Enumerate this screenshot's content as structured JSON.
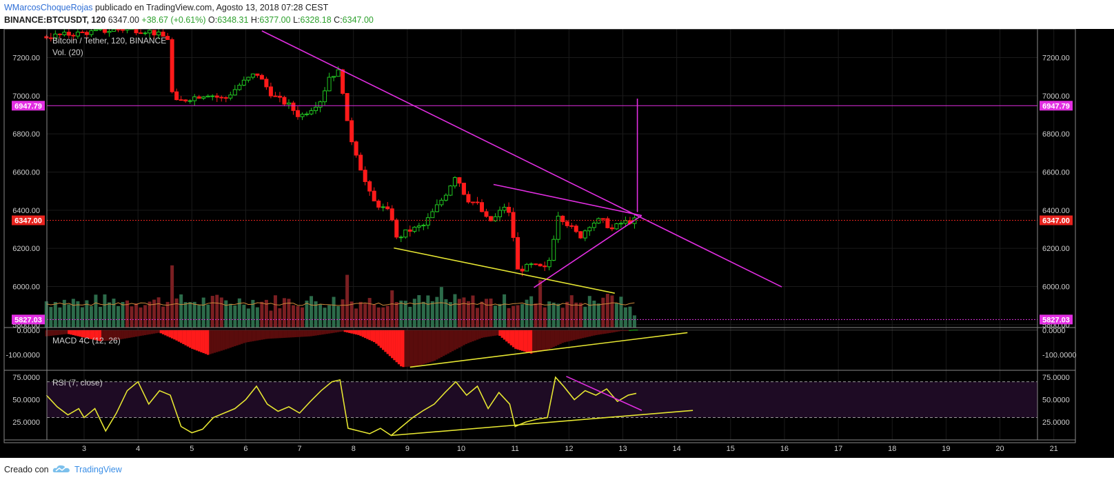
{
  "header": {
    "author": "WMarcosChoqueRojas",
    "published": "publicado en TradingView.com, Agosto 13, 2018 07:28 CEST",
    "symbol": "BINANCE:BTCUSDT, 120",
    "last": "6347.00",
    "change": "+38.67 (+0.61%)",
    "o_label": "O:",
    "o": "6348.31",
    "h_label": "H:",
    "h": "6377.00",
    "l_label": "L:",
    "l": "6328.18",
    "c_label": "C:",
    "c": "6347.00"
  },
  "footer": {
    "created": "Creado con",
    "brand": "TradingView"
  },
  "colors": {
    "bg": "#000000",
    "grid": "#1b1b1b",
    "up": "#22c922",
    "down": "#ff1a1a",
    "magenta": "#e22ee2",
    "yellow": "#e6e632",
    "price_tag": "#e8231e"
  },
  "chart_data": [
    {
      "type": "candlestick",
      "title": "Bitcoin / Tether, 120, BINANCE",
      "subtitle": "Vol. (20)",
      "x_ticks": [
        "3",
        "4",
        "5",
        "6",
        "7",
        "8",
        "9",
        "10",
        "11",
        "12",
        "13",
        "14",
        "15",
        "16",
        "17",
        "18",
        "19",
        "20",
        "21"
      ],
      "y_ticks": [
        "7200.00",
        "7000.00",
        "6800.00",
        "6600.00",
        "6400.00",
        "6200.00",
        "6000.00",
        "5800.00"
      ],
      "ylim": [
        5785,
        7350
      ],
      "price_tags": [
        {
          "value": 6947.79,
          "label": "6947.79",
          "color": "#e22ee2"
        },
        {
          "value": 6347.0,
          "label": "6347.00",
          "color": "#e8231e"
        },
        {
          "value": 5827.03,
          "label": "5827.03",
          "color": "#e22ee2"
        }
      ],
      "trendlines": [
        {
          "color": "#e22ee2",
          "points": [
            [
              6.3,
              7340
            ],
            [
              15.95,
              5998
            ]
          ]
        },
        {
          "color": "#e22ee2",
          "points": [
            [
              10.6,
              6535
            ],
            [
              13.35,
              6372
            ]
          ]
        },
        {
          "color": "#e22ee2",
          "points": [
            [
              11.35,
              5995
            ],
            [
              13.35,
              6372
            ]
          ]
        },
        {
          "color": "#e22ee2",
          "points": [
            [
              13.27,
              6390
            ],
            [
              13.27,
              6985
            ]
          ]
        },
        {
          "color": "#e6e632",
          "points": [
            [
              8.75,
              6202
            ],
            [
              12.85,
              5965
            ]
          ]
        }
      ],
      "candles_anchor": [
        [
          2.3,
          7310
        ],
        [
          3.0,
          7330
        ],
        [
          3.4,
          7340
        ],
        [
          3.7,
          7350
        ],
        [
          4.2,
          7340
        ],
        [
          4.55,
          7300
        ],
        [
          4.65,
          6960
        ],
        [
          5.0,
          6990
        ],
        [
          5.3,
          7010
        ],
        [
          5.6,
          6980
        ],
        [
          5.9,
          7060
        ],
        [
          6.2,
          7120
        ],
        [
          6.5,
          7000
        ],
        [
          6.8,
          6950
        ],
        [
          7.0,
          6890
        ],
        [
          7.2,
          6930
        ],
        [
          7.4,
          6980
        ],
        [
          7.55,
          7100
        ],
        [
          7.75,
          7130
        ],
        [
          7.9,
          6820
        ],
        [
          8.05,
          6700
        ],
        [
          8.2,
          6560
        ],
        [
          8.35,
          6450
        ],
        [
          8.5,
          6420
        ],
        [
          8.7,
          6380
        ],
        [
          8.8,
          6250
        ],
        [
          9.0,
          6290
        ],
        [
          9.3,
          6320
        ],
        [
          9.5,
          6400
        ],
        [
          9.7,
          6480
        ],
        [
          9.9,
          6590
        ],
        [
          10.1,
          6460
        ],
        [
          10.3,
          6430
        ],
        [
          10.5,
          6340
        ],
        [
          10.6,
          6350
        ],
        [
          10.8,
          6420
        ],
        [
          10.95,
          6350
        ],
        [
          11.0,
          6080
        ],
        [
          11.3,
          6110
        ],
        [
          11.6,
          6090
        ],
        [
          11.8,
          6380
        ],
        [
          12.0,
          6320
        ],
        [
          12.2,
          6260
        ],
        [
          12.4,
          6330
        ],
        [
          12.6,
          6350
        ],
        [
          12.8,
          6300
        ],
        [
          12.95,
          6330
        ],
        [
          13.2,
          6347
        ]
      ],
      "volume_hint": [
        [
          3,
          30
        ],
        [
          4.6,
          92
        ],
        [
          6.5,
          25
        ],
        [
          7.9,
          78
        ],
        [
          8.7,
          55
        ],
        [
          9.6,
          60
        ],
        [
          11.5,
          70
        ],
        [
          12.75,
          50
        ],
        [
          13.2,
          18
        ]
      ]
    },
    {
      "type": "histogram",
      "title": "MACD 4C (12, 26)",
      "y_ticks": [
        "0.0000",
        "-100.0000"
      ],
      "ylim": [
        -160,
        8
      ],
      "anchor": [
        [
          2.3,
          -25
        ],
        [
          2.7,
          -15
        ],
        [
          3.0,
          -30
        ],
        [
          3.3,
          -45
        ],
        [
          3.6,
          -40
        ],
        [
          4.0,
          -25
        ],
        [
          4.4,
          -10
        ],
        [
          4.7,
          -40
        ],
        [
          5.0,
          -75
        ],
        [
          5.3,
          -100
        ],
        [
          5.6,
          -80
        ],
        [
          6.0,
          -50
        ],
        [
          6.4,
          -35
        ],
        [
          6.8,
          -30
        ],
        [
          7.2,
          -25
        ],
        [
          7.6,
          -12
        ],
        [
          7.8,
          -5
        ],
        [
          8.1,
          -20
        ],
        [
          8.4,
          -50
        ],
        [
          8.7,
          -110
        ],
        [
          8.9,
          -150
        ],
        [
          9.2,
          -145
        ],
        [
          9.5,
          -125
        ],
        [
          9.8,
          -90
        ],
        [
          10.1,
          -55
        ],
        [
          10.4,
          -30
        ],
        [
          10.7,
          -20
        ],
        [
          11.0,
          -75
        ],
        [
          11.3,
          -95
        ],
        [
          11.6,
          -80
        ],
        [
          11.9,
          -50
        ],
        [
          12.2,
          -35
        ],
        [
          12.5,
          -20
        ],
        [
          12.8,
          -10
        ],
        [
          13.0,
          -2
        ],
        [
          13.2,
          2
        ]
      ],
      "trendlines": [
        {
          "color": "#e6e632",
          "points": [
            [
              9.05,
              -150
            ],
            [
              14.2,
              -10
            ]
          ]
        }
      ]
    },
    {
      "type": "line",
      "title": "RSI (7, close)",
      "y_ticks": [
        "75.0000",
        "50.0000",
        "25.0000"
      ],
      "ylim": [
        5,
        82
      ],
      "bands": [
        70,
        30
      ],
      "values": [
        [
          2.3,
          55
        ],
        [
          2.5,
          42
        ],
        [
          2.7,
          33
        ],
        [
          2.9,
          40
        ],
        [
          3.0,
          30
        ],
        [
          3.2,
          40
        ],
        [
          3.4,
          15
        ],
        [
          3.6,
          35
        ],
        [
          3.8,
          60
        ],
        [
          4.0,
          70
        ],
        [
          4.2,
          45
        ],
        [
          4.4,
          60
        ],
        [
          4.6,
          55
        ],
        [
          4.8,
          20
        ],
        [
          5.0,
          13
        ],
        [
          5.2,
          17
        ],
        [
          5.4,
          30
        ],
        [
          5.6,
          35
        ],
        [
          5.8,
          40
        ],
        [
          6.0,
          50
        ],
        [
          6.2,
          65
        ],
        [
          6.4,
          45
        ],
        [
          6.6,
          37
        ],
        [
          6.8,
          42
        ],
        [
          7.0,
          35
        ],
        [
          7.2,
          48
        ],
        [
          7.4,
          60
        ],
        [
          7.6,
          70
        ],
        [
          7.75,
          72
        ],
        [
          7.9,
          18
        ],
        [
          8.1,
          15
        ],
        [
          8.3,
          12
        ],
        [
          8.5,
          18
        ],
        [
          8.7,
          10
        ],
        [
          8.9,
          20
        ],
        [
          9.1,
          30
        ],
        [
          9.3,
          38
        ],
        [
          9.5,
          45
        ],
        [
          9.7,
          58
        ],
        [
          9.9,
          70
        ],
        [
          10.1,
          55
        ],
        [
          10.3,
          65
        ],
        [
          10.5,
          40
        ],
        [
          10.7,
          58
        ],
        [
          10.9,
          45
        ],
        [
          11.0,
          20
        ],
        [
          11.2,
          25
        ],
        [
          11.4,
          28
        ],
        [
          11.6,
          30
        ],
        [
          11.75,
          75
        ],
        [
          11.9,
          65
        ],
        [
          12.1,
          50
        ],
        [
          12.3,
          60
        ],
        [
          12.5,
          55
        ],
        [
          12.7,
          62
        ],
        [
          12.9,
          48
        ],
        [
          13.1,
          55
        ],
        [
          13.25,
          57
        ]
      ],
      "trendlines": [
        {
          "color": "#e6e632",
          "points": [
            [
              8.7,
              10
            ],
            [
              14.3,
              38
            ]
          ]
        },
        {
          "color": "#e22ee2",
          "points": [
            [
              11.95,
              76
            ],
            [
              13.35,
              38
            ]
          ]
        }
      ]
    }
  ]
}
